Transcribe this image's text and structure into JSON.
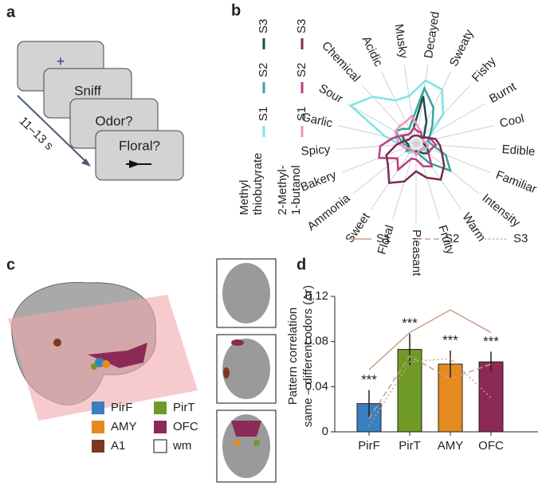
{
  "panel_labels": [
    "a",
    "b",
    "c",
    "d"
  ],
  "panel_a": {
    "screens": [
      "+",
      "Sniff",
      "Odor?",
      "Floral?"
    ],
    "timing": "11–13 s"
  },
  "panel_c": {
    "legend": [
      {
        "label": "PirF",
        "color": "#3a7fc1"
      },
      {
        "label": "AMY",
        "color": "#e58a1f"
      },
      {
        "label": "A1",
        "color": "#7a3a1e"
      },
      {
        "label": "PirT",
        "color": "#6f9a26"
      },
      {
        "label": "OFC",
        "color": "#8c2a57"
      },
      {
        "label": "wm",
        "color": "#ffffff"
      }
    ]
  },
  "chart_data": [
    {
      "type": "radar",
      "categories": [
        "Musky",
        "Decayed",
        "Sweaty",
        "Fishy",
        "Burnt",
        "Cool",
        "Edible",
        "Familiar",
        "Intensity",
        "Warm",
        "Fruity",
        "Pleasant",
        "Floral",
        "Sweet",
        "Ammonia",
        "Bakery",
        "Spicy",
        "Garlic",
        "Sour",
        "Chemical",
        "Acidic"
      ],
      "rlim": [
        0,
        1
      ],
      "groups": [
        {
          "label_lines": [
            "Methyl",
            "thiobutyrate"
          ]
        },
        {
          "label_lines": [
            "2-Methyl-",
            "1-butanol"
          ]
        }
      ],
      "series": [
        {
          "name": "S1",
          "group": 0,
          "color": "#7fe3e3",
          "values": [
            0.6,
            0.8,
            0.75,
            0.5,
            0.2,
            0.15,
            0.1,
            0.1,
            0.15,
            0.1,
            0.1,
            0.1,
            0.1,
            0.15,
            0.15,
            0.15,
            0.2,
            0.4,
            0.95,
            0.8,
            0.6
          ]
        },
        {
          "name": "S2",
          "group": 0,
          "color": "#3aa39c",
          "values": [
            0.3,
            0.7,
            0.5,
            0.3,
            0.2,
            0.15,
            0.2,
            0.4,
            0.55,
            0.3,
            0.15,
            0.1,
            0.1,
            0.1,
            0.15,
            0.1,
            0.15,
            0.2,
            0.3,
            0.25,
            0.2
          ]
        },
        {
          "name": "S3",
          "group": 0,
          "color": "#1d4f4a",
          "values": [
            0.2,
            0.6,
            0.3,
            0.15,
            0.1,
            0.1,
            0.1,
            0.15,
            0.2,
            0.15,
            0.1,
            0.1,
            0.1,
            0.1,
            0.1,
            0.1,
            0.1,
            0.15,
            0.2,
            0.15,
            0.15
          ]
        },
        {
          "name": "S1",
          "group": 1,
          "color": "#f08fc0",
          "values": [
            0.35,
            0.2,
            0.15,
            0.1,
            0.1,
            0.1,
            0.15,
            0.15,
            0.1,
            0.1,
            0.1,
            0.15,
            0.1,
            0.1,
            0.1,
            0.15,
            0.2,
            0.25,
            0.3,
            0.3,
            0.3
          ]
        },
        {
          "name": "S2",
          "group": 1,
          "color": "#b8407e",
          "values": [
            0.2,
            0.15,
            0.15,
            0.1,
            0.15,
            0.2,
            0.25,
            0.2,
            0.2,
            0.35,
            0.3,
            0.2,
            0.2,
            0.4,
            0.3,
            0.5,
            0.45,
            0.3,
            0.2,
            0.15,
            0.15
          ]
        },
        {
          "name": "S3",
          "group": 1,
          "color": "#7a2a5a",
          "values": [
            0.1,
            0.1,
            0.1,
            0.1,
            0.15,
            0.25,
            0.3,
            0.35,
            0.45,
            0.55,
            0.45,
            0.35,
            0.5,
            0.6,
            0.45,
            0.4,
            0.25,
            0.15,
            0.1,
            0.1,
            0.1
          ]
        }
      ]
    },
    {
      "type": "bar",
      "ylabel_lines": [
        "Pattern correlation",
        "same – different odors (Δr)"
      ],
      "categories": [
        "PirF",
        "PirT",
        "AMY",
        "OFC"
      ],
      "values": [
        0.025,
        0.073,
        0.06,
        0.062
      ],
      "errors": [
        0.012,
        0.014,
        0.012,
        0.009
      ],
      "colors": [
        "#3a7fc1",
        "#6f9a26",
        "#e58a1f",
        "#8c2a57"
      ],
      "annotations": [
        "***",
        "***",
        "***",
        "***"
      ],
      "ylim": [
        0,
        0.12
      ],
      "yticks": [
        0,
        0.04,
        0.08,
        0.12
      ],
      "series": [
        {
          "name": "S1",
          "style": "solid",
          "color": "#c9a08c",
          "values": [
            0.055,
            0.088,
            0.108,
            0.088
          ]
        },
        {
          "name": "S2",
          "style": "dashed",
          "color": "#c9a08c",
          "values": [
            0.012,
            0.067,
            0.047,
            0.06
          ]
        },
        {
          "name": "S3",
          "style": "dotted",
          "color": "#c9a08c",
          "values": [
            0.005,
            0.062,
            0.065,
            0.03
          ]
        }
      ]
    }
  ]
}
